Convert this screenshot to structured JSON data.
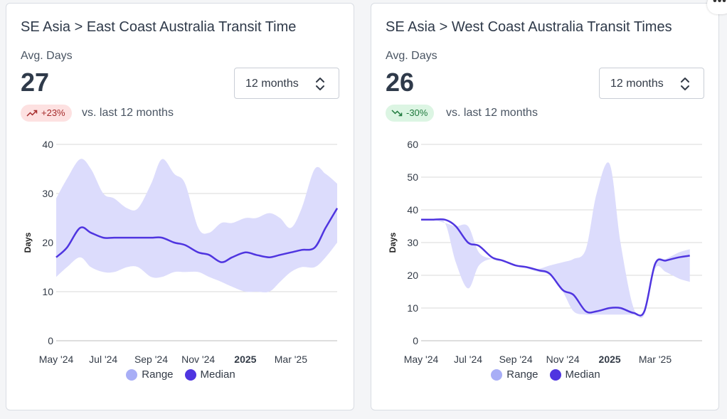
{
  "colors": {
    "range": "#dcdcfc",
    "range_legend": "#a8aef6",
    "median": "#4f35e0",
    "grid": "#d9d9d9"
  },
  "cards": [
    {
      "title": "SE Asia > East Coast Australia Transit Time",
      "avg_label": "Avg. Days",
      "avg_value": "27",
      "range_select": "12 months",
      "badge": {
        "text": "+23%",
        "direction": "up",
        "icon": "trend-up-icon"
      },
      "vs_label": "vs. last 12 months",
      "legend": [
        "Range",
        "Median"
      ]
    },
    {
      "title": "SE Asia > West Coast Australia Transit Times",
      "avg_label": "Avg. Days",
      "avg_value": "26",
      "range_select": "12 months",
      "badge": {
        "text": "-30%",
        "direction": "down",
        "icon": "trend-down-icon"
      },
      "vs_label": "vs. last 12 months",
      "legend": [
        "Range",
        "Median"
      ]
    }
  ],
  "chart_data": [
    {
      "type": "area",
      "ylabel": "Days",
      "ylim": [
        0,
        40
      ],
      "yticks": [
        0,
        10,
        20,
        30,
        40
      ],
      "xlim": [
        "2024-05-01",
        "2025-04-30"
      ],
      "xticks": [
        {
          "date": "2024-05-01",
          "label": "May '24",
          "bold": false
        },
        {
          "date": "2024-07-01",
          "label": "Jul '24",
          "bold": false
        },
        {
          "date": "2024-09-01",
          "label": "Sep '24",
          "bold": false
        },
        {
          "date": "2024-11-01",
          "label": "Nov '24",
          "bold": false
        },
        {
          "date": "2025-01-01",
          "label": "2025",
          "bold": true
        },
        {
          "date": "2025-03-01",
          "label": "Mar '25",
          "bold": false
        }
      ],
      "grid": true,
      "legend_placement": "bottom",
      "series": [
        {
          "name": "Range",
          "x": [
            "2024-05-01",
            "2024-05-15",
            "2024-06-01",
            "2024-06-15",
            "2024-07-01",
            "2024-07-15",
            "2024-08-01",
            "2024-08-15",
            "2024-09-01",
            "2024-09-15",
            "2024-10-01",
            "2024-10-15",
            "2024-11-01",
            "2024-11-15",
            "2024-12-01",
            "2024-12-15",
            "2025-01-01",
            "2025-01-15",
            "2025-02-01",
            "2025-02-15",
            "2025-03-01",
            "2025-03-15",
            "2025-04-01",
            "2025-04-15",
            "2025-04-30"
          ],
          "low": [
            13,
            15,
            17,
            15,
            14,
            14,
            15,
            15,
            13,
            13,
            14,
            14,
            14,
            13,
            12,
            11,
            10,
            10,
            10,
            12,
            14,
            15,
            15,
            17,
            20
          ],
          "high": [
            29,
            33,
            37,
            35,
            30,
            29,
            27,
            27,
            32,
            37,
            34,
            32,
            23,
            22,
            24,
            24,
            25,
            25,
            26,
            25,
            23,
            27,
            35,
            34,
            32
          ]
        },
        {
          "name": "Median",
          "x": [
            "2024-05-01",
            "2024-05-15",
            "2024-06-01",
            "2024-06-15",
            "2024-07-01",
            "2024-07-15",
            "2024-08-01",
            "2024-08-15",
            "2024-09-01",
            "2024-09-15",
            "2024-10-01",
            "2024-10-15",
            "2024-11-01",
            "2024-11-15",
            "2024-12-01",
            "2024-12-15",
            "2025-01-01",
            "2025-01-15",
            "2025-02-01",
            "2025-02-15",
            "2025-03-01",
            "2025-03-15",
            "2025-04-01",
            "2025-04-15",
            "2025-04-30"
          ],
          "values": [
            17,
            19,
            23,
            22,
            21,
            21,
            21,
            21,
            21,
            21,
            20,
            19.5,
            18,
            17.5,
            16,
            17,
            18,
            17.5,
            17,
            17.5,
            18,
            18.5,
            19,
            23,
            27
          ]
        }
      ]
    },
    {
      "type": "area",
      "ylabel": "Days",
      "ylim": [
        0,
        60
      ],
      "yticks": [
        0,
        10,
        20,
        30,
        40,
        50,
        60
      ],
      "xlim": [
        "2024-05-01",
        "2025-05-01"
      ],
      "xticks": [
        {
          "date": "2024-05-01",
          "label": "May '24",
          "bold": false
        },
        {
          "date": "2024-07-01",
          "label": "Jul '24",
          "bold": false
        },
        {
          "date": "2024-09-01",
          "label": "Sep '24",
          "bold": false
        },
        {
          "date": "2024-11-01",
          "label": "Nov '24",
          "bold": false
        },
        {
          "date": "2025-01-01",
          "label": "2025",
          "bold": true
        },
        {
          "date": "2025-03-01",
          "label": "Mar '25",
          "bold": false
        }
      ],
      "grid": true,
      "legend_placement": "bottom",
      "series": [
        {
          "name": "Range",
          "x": [
            "2024-05-01",
            "2024-05-15",
            "2024-06-01",
            "2024-06-15",
            "2024-07-01",
            "2024-07-15",
            "2024-08-01",
            "2024-08-15",
            "2024-09-01",
            "2024-09-15",
            "2024-10-01",
            "2024-10-15",
            "2024-11-01",
            "2024-11-15",
            "2024-12-01",
            "2024-12-15",
            "2025-01-01",
            "2025-01-15",
            "2025-02-01",
            "2025-02-15",
            "2025-03-01",
            "2025-03-15",
            "2025-04-01",
            "2025-04-15"
          ],
          "low": [
            37,
            37,
            36,
            24,
            16,
            23,
            25,
            24,
            23,
            22,
            21,
            20,
            15,
            9,
            8,
            8,
            8,
            8,
            8,
            8,
            22,
            21,
            19,
            18
          ],
          "high": [
            37,
            37,
            36,
            35,
            35,
            27,
            25,
            24,
            23,
            22,
            22,
            23,
            24,
            25,
            28,
            45,
            54,
            30,
            10,
            9,
            24,
            25,
            27,
            28
          ]
        },
        {
          "name": "Median",
          "x": [
            "2024-05-01",
            "2024-05-15",
            "2024-06-01",
            "2024-06-15",
            "2024-07-01",
            "2024-07-15",
            "2024-08-01",
            "2024-08-15",
            "2024-09-01",
            "2024-09-15",
            "2024-10-01",
            "2024-10-15",
            "2024-11-01",
            "2024-11-15",
            "2024-12-01",
            "2024-12-15",
            "2025-01-01",
            "2025-01-15",
            "2025-02-01",
            "2025-02-15",
            "2025-03-01",
            "2025-03-15",
            "2025-04-01",
            "2025-04-15"
          ],
          "values": [
            37,
            37,
            37,
            35,
            30,
            29,
            25.5,
            24.5,
            23,
            22.5,
            21.5,
            20.5,
            15.5,
            14,
            9,
            9,
            10,
            10,
            8.5,
            9,
            23.5,
            24.5,
            25.5,
            26
          ]
        }
      ]
    }
  ]
}
